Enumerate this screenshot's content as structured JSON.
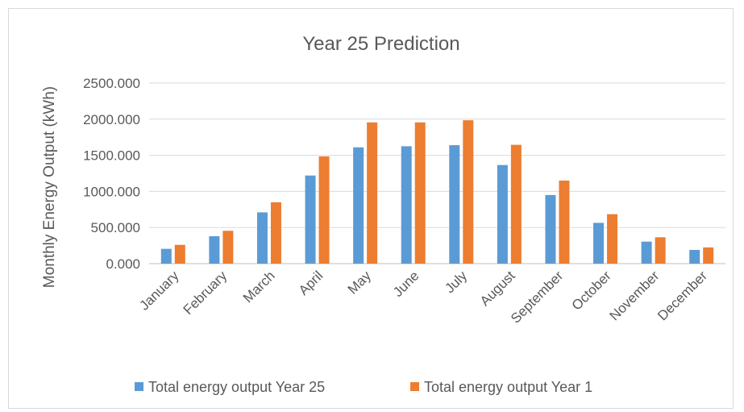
{
  "chart_data": {
    "type": "bar",
    "title": "Year 25 Prediction",
    "xlabel": "",
    "ylabel": "Monthly Energy Output (kWh)",
    "ylim": [
      0,
      2500
    ],
    "yticks": [
      "0.000",
      "500.000",
      "1000.000",
      "1500.000",
      "2000.000",
      "2500.000"
    ],
    "grid": true,
    "legend_position": "bottom",
    "categories": [
      "January",
      "February",
      "March",
      "April",
      "May",
      "June",
      "July",
      "August",
      "September",
      "October",
      "November",
      "December"
    ],
    "series": [
      {
        "name": "Total energy output Year 25",
        "color": "#5b9bd5",
        "values": [
          205,
          380,
          710,
          1220,
          1610,
          1625,
          1640,
          1365,
          950,
          565,
          305,
          190
        ]
      },
      {
        "name": "Total energy output Year 1",
        "color": "#ed7d31",
        "values": [
          260,
          455,
          850,
          1485,
          1955,
          1955,
          1985,
          1645,
          1150,
          685,
          365,
          225
        ]
      }
    ]
  }
}
